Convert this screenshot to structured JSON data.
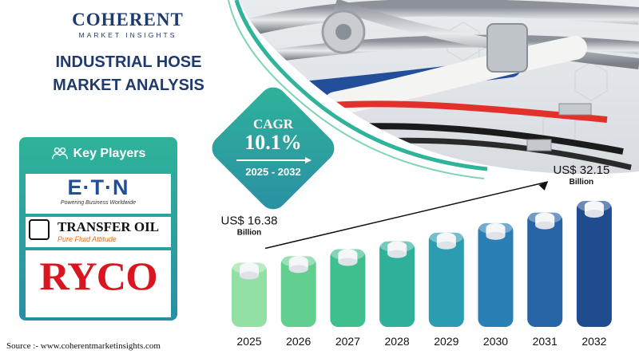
{
  "brand": {
    "name": "COHERENT",
    "tagline": "MARKET INSIGHTS"
  },
  "title": {
    "line1": "INDUSTRIAL HOSE",
    "line2": "MARKET ANALYSIS"
  },
  "cagr": {
    "label": "CAGR",
    "value": "10.1%",
    "period": "2025 - 2032"
  },
  "key_players": {
    "heading": "Key Players",
    "eaton": {
      "name": "E·T·N",
      "tagline": "Powering Business Worldwide"
    },
    "transfer_oil": {
      "name": "TRANSFER OIL",
      "tagline": "Pure Fluid Attitude"
    },
    "ryco": {
      "name": "RYCO"
    }
  },
  "source": "Source :- www.coherentmarketinsights.com",
  "colors": {
    "navy": "#1f3a6e",
    "teal": "#2a9d8f",
    "bar_gradient": [
      "#92e0a4",
      "#62cf8e",
      "#3fbf8d",
      "#2fb09a",
      "#2c9db0",
      "#2a7fb5",
      "#2664a6",
      "#1f4c8f"
    ]
  },
  "chart_data": {
    "type": "bar",
    "categories": [
      "2025",
      "2026",
      "2027",
      "2028",
      "2029",
      "2030",
      "2031",
      "2032"
    ],
    "values": [
      16.38,
      18.03,
      19.85,
      21.86,
      24.06,
      26.49,
      29.17,
      32.15
    ],
    "annotations": [
      {
        "category": "2025",
        "text": "US$ 16.38",
        "sub": "Billion"
      },
      {
        "category": "2032",
        "text": "US$ 32.15",
        "sub": "Billion"
      }
    ],
    "unit": "US$ Billion"
  }
}
